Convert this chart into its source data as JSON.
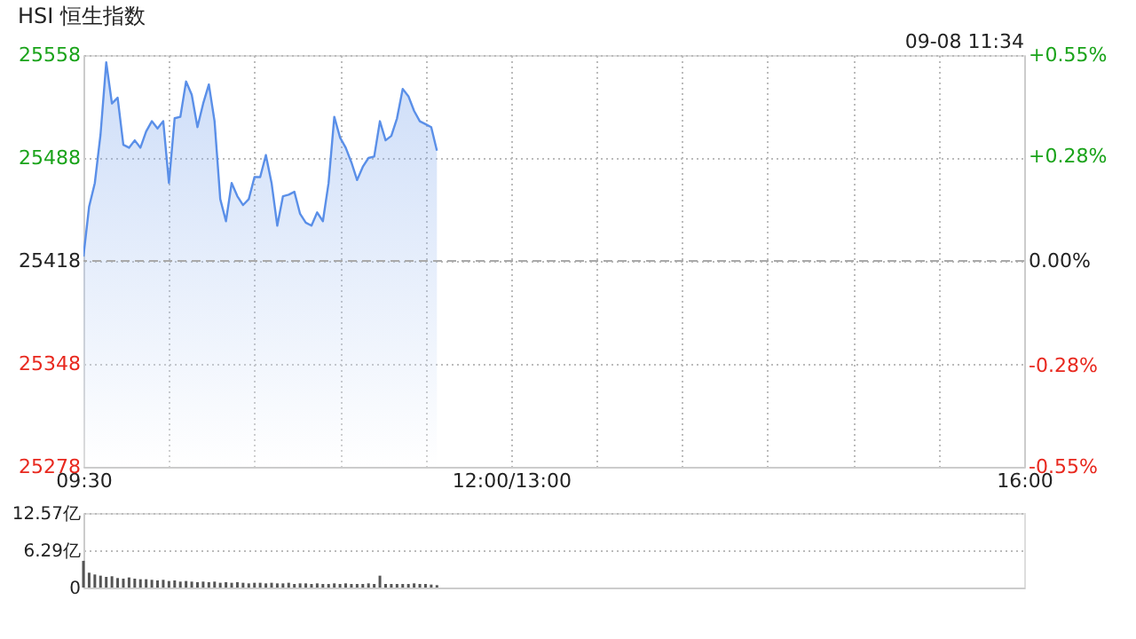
{
  "chart_data": [
    {
      "type": "area",
      "title": "HSI 恒生指数",
      "annotations": [
        "09-08 11:34"
      ],
      "categories": [
        "09:30",
        null,
        null,
        null,
        null,
        null,
        null,
        null,
        null,
        null,
        null,
        null,
        null,
        null,
        null,
        null,
        null,
        null,
        null,
        null,
        null,
        null,
        null,
        null,
        null,
        null,
        null,
        null,
        null,
        null,
        null,
        null,
        null,
        null,
        null,
        null,
        null,
        null,
        null,
        null,
        null,
        null,
        null,
        null,
        null,
        null,
        null,
        null,
        null,
        null,
        null,
        null,
        null,
        null,
        null,
        null,
        null,
        null,
        null,
        null,
        null,
        null,
        null,
        null,
        null,
        null,
        null,
        null,
        null,
        null,
        null,
        null,
        null,
        null,
        null,
        "12:00/13:00",
        null,
        null,
        null,
        null,
        null,
        null,
        null,
        null,
        null,
        null,
        null,
        null,
        null,
        null,
        null,
        null,
        null,
        null,
        null,
        null,
        null,
        null,
        null,
        null,
        null,
        null,
        null,
        null,
        null,
        null,
        null,
        null,
        null,
        null,
        null,
        null,
        null,
        null,
        null,
        null,
        null,
        null,
        null,
        null,
        null,
        null,
        null,
        null,
        null,
        null,
        null,
        null,
        null,
        null,
        null,
        null,
        null,
        null,
        null,
        null,
        null,
        null,
        null,
        null,
        null,
        null,
        null,
        null,
        null,
        null,
        null,
        null,
        null,
        null,
        null,
        null,
        null,
        null,
        null,
        null,
        null,
        null,
        null,
        null,
        null,
        null,
        null,
        null,
        null,
        "16:00"
      ],
      "series": [
        {
          "color": "#5a8fe8",
          "values": [
            25421,
            25455,
            25471,
            25504,
            25553,
            25525,
            25529,
            25497,
            25495,
            25500,
            25495,
            25506,
            25513,
            25508,
            25513,
            25471,
            25515,
            25516,
            25540,
            25531,
            25509,
            25525,
            25538,
            25513,
            25460,
            25445,
            25471,
            25462,
            25456,
            25460,
            25475,
            25475,
            25490,
            25471,
            25442,
            25462,
            25463,
            25465,
            25450,
            25444,
            25442,
            25451,
            25445,
            25471,
            25516,
            25502,
            25495,
            25485,
            25473,
            25482,
            25488,
            25489,
            25513,
            25500,
            25503,
            25515,
            25535,
            25530,
            25520,
            25513,
            25511,
            25509,
            25493,
            null,
            null,
            null,
            null,
            null,
            null,
            null,
            null,
            null,
            null,
            null,
            null,
            null,
            null,
            null,
            null,
            null,
            null,
            null,
            null,
            null,
            null,
            null,
            null,
            null,
            null,
            null,
            null,
            null,
            null,
            null,
            null,
            null,
            null,
            null,
            null,
            null,
            null,
            null,
            null,
            null,
            null,
            null,
            null,
            null,
            null,
            null,
            null,
            null,
            null,
            null,
            null,
            null,
            null,
            null,
            null,
            null,
            null,
            null,
            null,
            null,
            null,
            null,
            null,
            null,
            null,
            null,
            null,
            null,
            null,
            null,
            null,
            null,
            null,
            null,
            null,
            null,
            null,
            null,
            null,
            null,
            null,
            null,
            null,
            null,
            null,
            null,
            null,
            null,
            null,
            null,
            null,
            null,
            null,
            null,
            null,
            null,
            null,
            null,
            null,
            null,
            null,
            null
          ]
        }
      ],
      "ylim": [
        25278,
        25558
      ],
      "yticks": [
        25278,
        25348,
        25418,
        25488,
        25558
      ],
      "y2lim": [
        -0.55,
        0.55
      ],
      "y2ticks": [
        {
          "value": -0.55,
          "label": "-0.55%"
        },
        {
          "value": -0.28,
          "label": "-0.28%"
        },
        {
          "value": 0,
          "label": "0.00%"
        },
        {
          "value": 0.28,
          "label": "+0.28%"
        },
        {
          "value": 0.55,
          "label": "+0.55%"
        }
      ],
      "ref_lines": [
        {
          "axis": "y",
          "value": 25418,
          "color": "#aaaaaa",
          "line_style": "dashed"
        }
      ],
      "grid": true,
      "line_style": "solid"
    },
    {
      "type": "bar",
      "categories": [
        null,
        null,
        null,
        null,
        null,
        null,
        null,
        null,
        null,
        null,
        null,
        null,
        null,
        null,
        null,
        null,
        null,
        null,
        null,
        null,
        null,
        null,
        null,
        null,
        null,
        null,
        null,
        null,
        null,
        null,
        null,
        null,
        null,
        null,
        null,
        null,
        null,
        null,
        null,
        null,
        null,
        null,
        null,
        null,
        null,
        null,
        null,
        null,
        null,
        null,
        null,
        null,
        null,
        null,
        null,
        null,
        null,
        null,
        null,
        null,
        null,
        null,
        null,
        null,
        null,
        null,
        null,
        null,
        null,
        null,
        null,
        null,
        null,
        null,
        null,
        null,
        null,
        null,
        null,
        null,
        null,
        null,
        null,
        null,
        null,
        null,
        null,
        null,
        null,
        null,
        null,
        null,
        null,
        null,
        null,
        null,
        null,
        null,
        null,
        null,
        null,
        null,
        null,
        null,
        null,
        null,
        null,
        null,
        null,
        null,
        null,
        null,
        null,
        null,
        null,
        null,
        null,
        null,
        null,
        null,
        null,
        null,
        null,
        null,
        null,
        null,
        null,
        null,
        null,
        null,
        null,
        null,
        null,
        null,
        null,
        null,
        null,
        null,
        null,
        null,
        null,
        null,
        null,
        null,
        null,
        null,
        null,
        null,
        null,
        null,
        null,
        null,
        null,
        null,
        null,
        null,
        null,
        null,
        null,
        null,
        null,
        null,
        null,
        null,
        null,
        null
      ],
      "series": [
        {
          "color": "#555555",
          "values": [
            4.5,
            2.5,
            2.2,
            2.0,
            1.8,
            1.9,
            1.6,
            1.5,
            1.7,
            1.5,
            1.4,
            1.4,
            1.3,
            1.2,
            1.3,
            1.1,
            1.2,
            1.0,
            1.1,
            1.0,
            0.9,
            1.0,
            0.9,
            1.0,
            0.8,
            0.9,
            0.8,
            0.9,
            0.8,
            0.7,
            0.8,
            0.8,
            0.7,
            0.8,
            0.7,
            0.7,
            0.8,
            0.6,
            0.7,
            0.7,
            0.6,
            0.7,
            0.6,
            0.6,
            0.7,
            0.6,
            0.7,
            0.6,
            0.6,
            0.6,
            0.7,
            0.6,
            2.0,
            0.6,
            0.6,
            0.6,
            0.6,
            0.6,
            0.7,
            0.6,
            0.6,
            0.5,
            0.4,
            null,
            null,
            null,
            null,
            null,
            null,
            null,
            null,
            null,
            null,
            null,
            null,
            null,
            null,
            null,
            null,
            null,
            null,
            null,
            null,
            null,
            null,
            null,
            null,
            null,
            null,
            null,
            null,
            null,
            null,
            null,
            null,
            null,
            null,
            null,
            null,
            null,
            null,
            null,
            null,
            null,
            null,
            null,
            null,
            null,
            null,
            null,
            null,
            null,
            null,
            null,
            null,
            null,
            null,
            null,
            null,
            null,
            null,
            null,
            null,
            null,
            null,
            null,
            null,
            null,
            null,
            null,
            null,
            null,
            null,
            null,
            null,
            null,
            null,
            null,
            null,
            null,
            null,
            null,
            null,
            null,
            null,
            null,
            null,
            null,
            null,
            null,
            null,
            null,
            null,
            null,
            null,
            null,
            null,
            null,
            null,
            null,
            null,
            null,
            null,
            null,
            null,
            null
          ]
        }
      ],
      "ylim": [
        0,
        12.57
      ],
      "yticks": [
        0,
        {
          "value": 6.29,
          "label": "6.29亿"
        },
        {
          "value": 12.57,
          "label": "12.57亿"
        }
      ],
      "tick_labels": "y",
      "grid": "y"
    }
  ]
}
